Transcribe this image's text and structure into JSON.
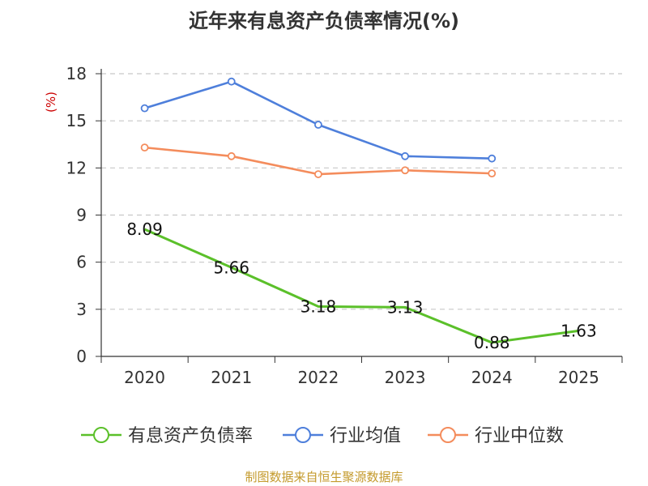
{
  "chart_data": {
    "type": "line",
    "title": "近年来有息资产负债率情况(%)",
    "ylabel": "(%)",
    "xlabel": "",
    "categories": [
      "2020",
      "2021",
      "2022",
      "2023",
      "2024",
      "2025"
    ],
    "ylim": [
      0,
      18
    ],
    "yticks": [
      0,
      3,
      6,
      9,
      12,
      15,
      18
    ],
    "grid": true,
    "legend_position": "bottom",
    "series": [
      {
        "name": "有息资产负债率",
        "color": "#5bc02a",
        "values": [
          8.09,
          5.66,
          3.18,
          3.13,
          0.88,
          1.63
        ],
        "labels": [
          "8.09",
          "5.66",
          "3.18",
          "3.13",
          "0.88",
          "1.63"
        ]
      },
      {
        "name": "行业均值",
        "color": "#4e7fdb",
        "values": [
          15.8,
          17.5,
          14.75,
          12.75,
          12.6,
          null
        ]
      },
      {
        "name": "行业中位数",
        "color": "#f48c5c",
        "values": [
          13.3,
          12.75,
          11.6,
          11.85,
          11.65,
          null
        ]
      }
    ]
  },
  "source": "制图数据来自恒生聚源数据库"
}
